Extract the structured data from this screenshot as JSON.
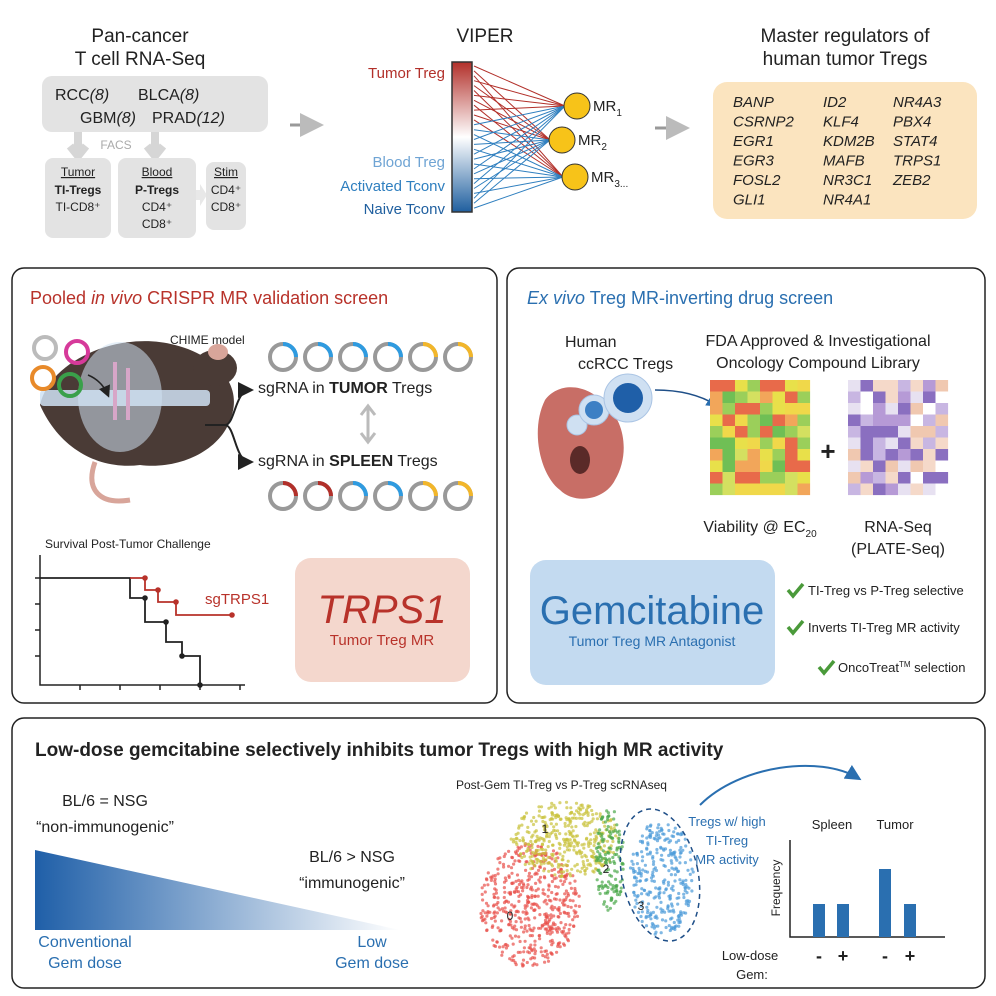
{
  "top": {
    "pancancer": {
      "title": [
        "Pan-cancer",
        "T cell RNA-Seq"
      ],
      "cohorts": [
        {
          "name": "RCC",
          "n": "(8)"
        },
        {
          "name": "BLCA",
          "n": "(8)"
        },
        {
          "name": "GBM",
          "n": "(8)"
        },
        {
          "name": "PRAD",
          "n": "(12)"
        }
      ],
      "facs": "FACS",
      "groups": [
        {
          "header": "Tumor",
          "lines": [
            "TI-Tregs",
            "TI-CD8⁺"
          ]
        },
        {
          "header": "Blood",
          "lines": [
            "P-Tregs",
            "CD4⁺",
            "CD8⁺"
          ]
        },
        {
          "header": "Stim",
          "lines": [
            "CD4⁺",
            "CD8⁺"
          ]
        }
      ]
    },
    "viper": {
      "title": "VIPER",
      "labels": [
        "Tumor Treg",
        "Blood Treg",
        "Activated Tconv",
        "Naive Tconv"
      ],
      "regulators": [
        {
          "name": "MR",
          "sub": "1"
        },
        {
          "name": "MR",
          "sub": "2"
        },
        {
          "name": "MR",
          "sub": "3..."
        }
      ]
    },
    "master": {
      "title": [
        "Master regulators of",
        "human tumor Tregs"
      ],
      "genes": [
        [
          "BANP",
          "CSRNP2",
          "EGR1",
          "EGR3",
          "FOSL2",
          "GLI1"
        ],
        [
          "ID2",
          "KLF4",
          "KDM2B",
          "MAFB",
          "NR3C1",
          "NR4A1"
        ],
        [
          "NR4A3",
          "PBX4",
          "STAT4",
          "TRPS1",
          "ZEB2"
        ]
      ]
    }
  },
  "crispr": {
    "title": [
      "Pooled ",
      "in vivo",
      " CRISPR MR validation screen"
    ],
    "model": "CHIME model",
    "tumor": [
      "sgRNA in ",
      "TUMOR",
      " Tregs"
    ],
    "spleen": [
      "sgRNA in ",
      "SPLEEN",
      " Tregs"
    ],
    "survival": "Survival Post-Tumor Challenge",
    "curve": "sgTRPS1",
    "hit": {
      "gene": "TRPS1",
      "role": "Tumor Treg MR"
    }
  },
  "drug": {
    "title": [
      "Ex vivo",
      " Treg MR-inverting drug screen"
    ],
    "cells": [
      "Human",
      "ccRCC Tregs"
    ],
    "library": [
      "FDA Approved & Investigational",
      "Oncology Compound Library"
    ],
    "viability": {
      "text": "Viability @ EC",
      "sub": "20"
    },
    "plus": "+",
    "rnaseq": [
      "RNA-Seq",
      "(PLATE-Seq)"
    ],
    "hit": {
      "drug": "Gemcitabine",
      "role": "Tumor Treg MR Antagonist"
    },
    "criteria": [
      "TI-Treg vs P-Treg selective",
      "Inverts TI-Treg MR activity"
    ],
    "oncotreat": {
      "name": "OncoTreat",
      "tm": "TM",
      "rest": " selection"
    }
  },
  "gem": {
    "title": "Low-dose gemcitabine selectively inhibits tumor Tregs with high MR activity",
    "equal": [
      "BL/6 = NSG",
      "“non-immunogenic”"
    ],
    "greater": [
      "BL/6 > NSG",
      "“immunogenic”"
    ],
    "conventional": [
      "Conventional",
      "Gem dose"
    ],
    "low": [
      "Low",
      "Gem dose"
    ],
    "umap": {
      "title": "Post-Gem TI-Treg vs P-Treg scRNAseq",
      "clusters": [
        "0",
        "1",
        "2",
        "3"
      ],
      "note": [
        "Tregs w/ high",
        "TI-Treg",
        "MR activity"
      ]
    },
    "freq": {
      "groups": [
        "Spleen",
        "Tumor"
      ],
      "ylabel": "Frequency",
      "treatment": [
        "Low-dose",
        "Gem:"
      ],
      "levels": [
        "-",
        "+",
        "-",
        "+"
      ]
    }
  }
}
